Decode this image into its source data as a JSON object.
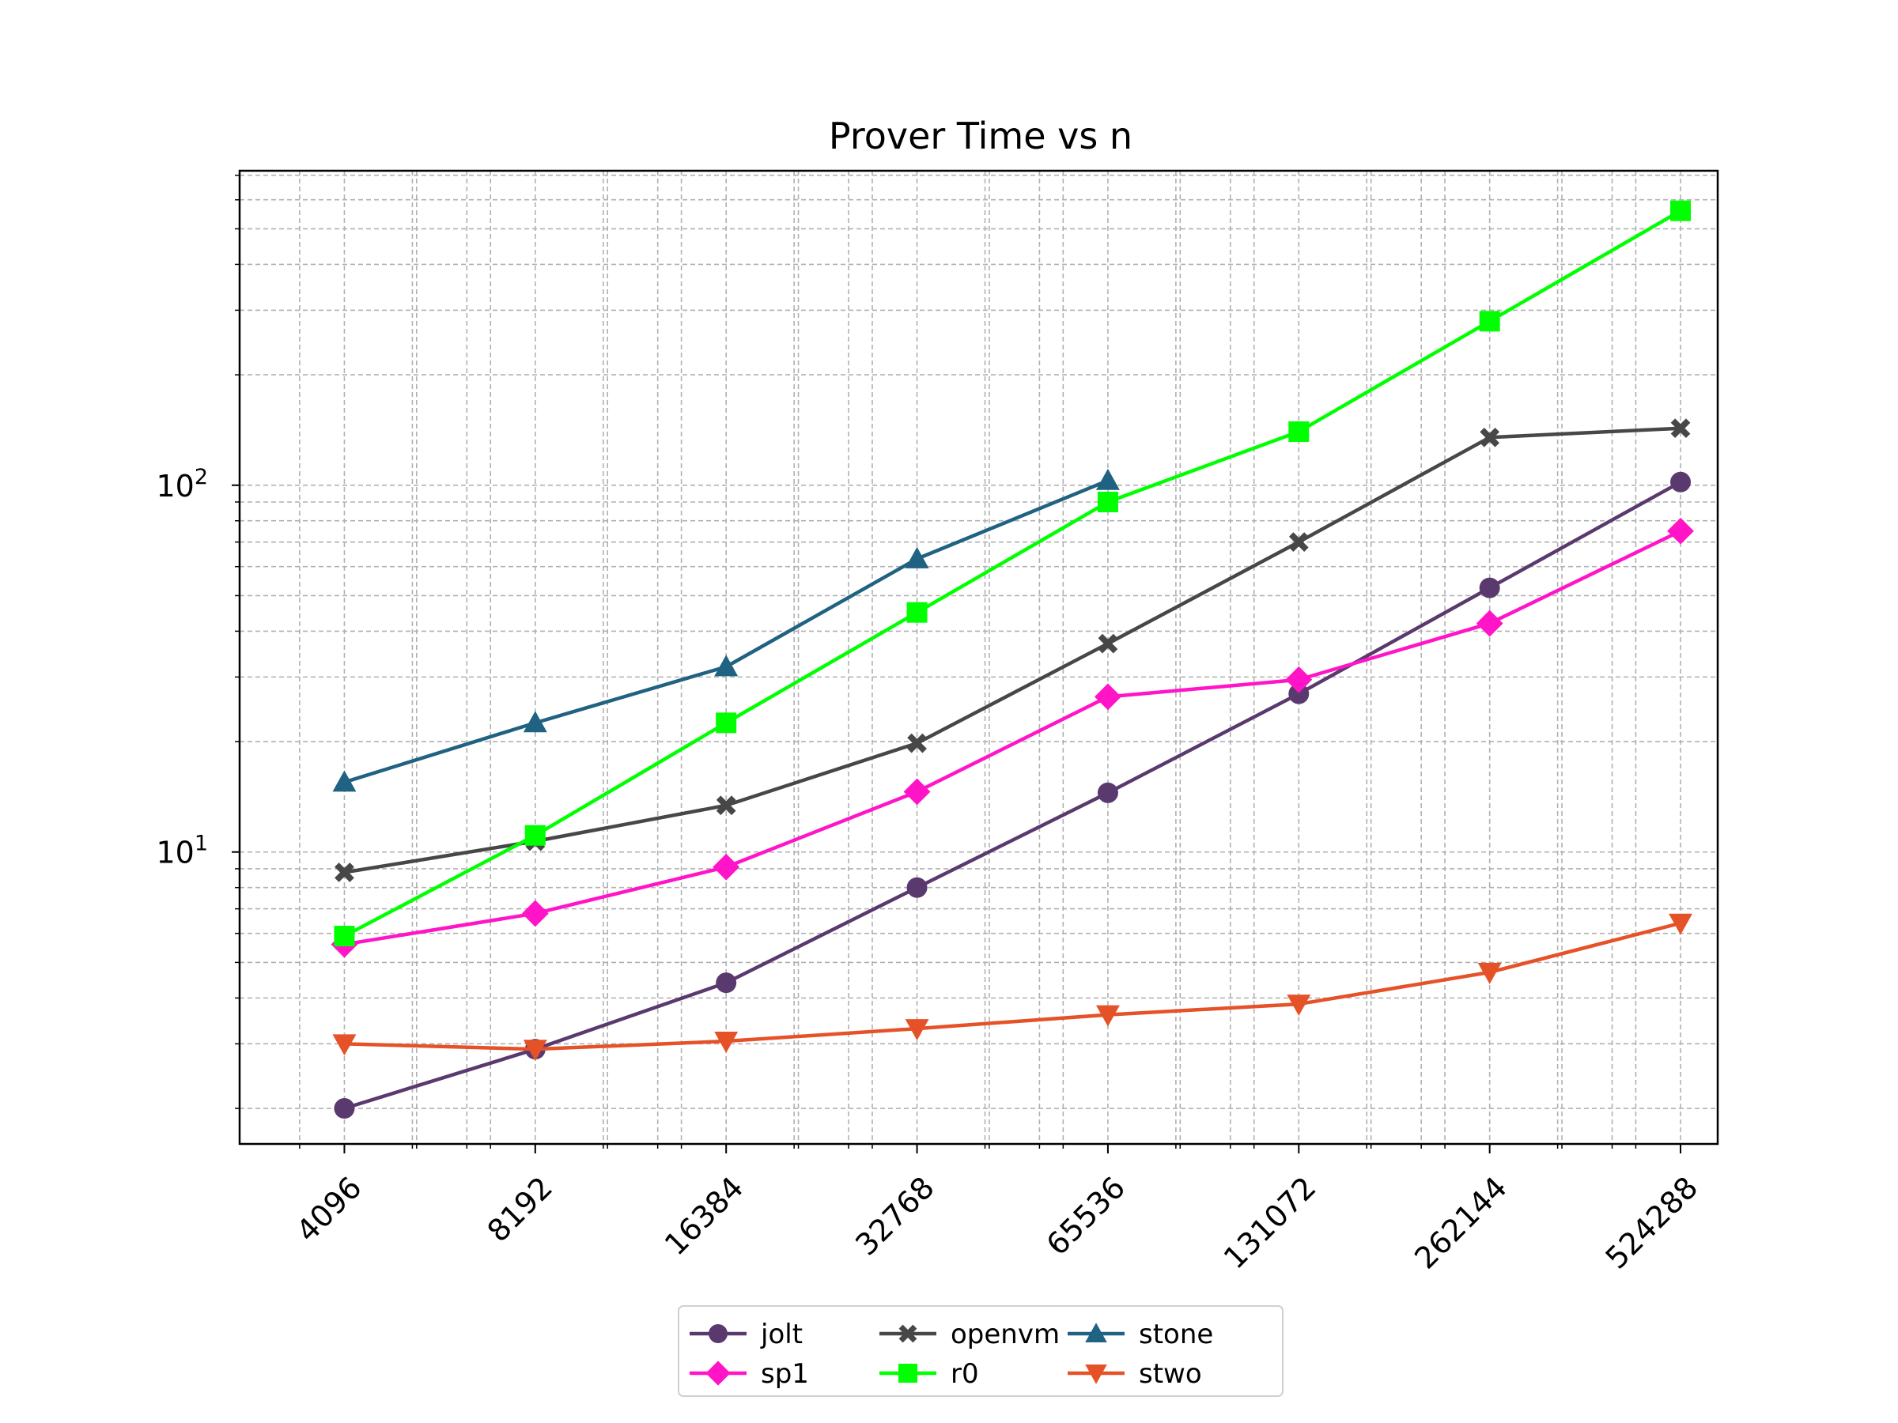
{
  "chart_data": {
    "type": "line",
    "title": "Prover Time vs n",
    "xlabel": "",
    "ylabel": "",
    "x": [
      4096,
      8192,
      16384,
      32768,
      65536,
      131072,
      262144,
      524288
    ],
    "x_tick_labels": [
      "4096",
      "8192",
      "16384",
      "32768",
      "65536",
      "131072",
      "262144",
      "524288"
    ],
    "x_scale": "log2",
    "y_scale": "log10",
    "ylim": [
      1.6,
      720
    ],
    "y_tick_labels": [
      {
        "base": "10",
        "exp": "1",
        "value": 10
      },
      {
        "base": "10",
        "exp": "2",
        "value": 100
      }
    ],
    "grid": true,
    "legend_position": "bottom-center",
    "series": [
      {
        "name": "jolt",
        "color": "#5a3a6e",
        "marker": "circle",
        "values": [
          2.0,
          2.9,
          4.4,
          8.0,
          14.5,
          27.0,
          52.5,
          102.0
        ]
      },
      {
        "name": "sp1",
        "color": "#ff14c8",
        "marker": "diamond",
        "values": [
          5.6,
          6.8,
          9.1,
          14.6,
          26.5,
          29.5,
          42.0,
          75.0
        ]
      },
      {
        "name": "openvm",
        "color": "#474747",
        "marker": "x",
        "values": [
          8.8,
          10.7,
          13.4,
          19.8,
          37.0,
          70.0,
          135.0,
          143.0
        ]
      },
      {
        "name": "r0",
        "color": "#00ff00",
        "marker": "square",
        "values": [
          5.9,
          11.1,
          22.5,
          45.0,
          90.0,
          140.0,
          280.0,
          560.0
        ]
      },
      {
        "name": "stone",
        "color": "#1f6282",
        "marker": "triangle-up",
        "values": [
          15.5,
          22.5,
          32.0,
          63.0,
          103.0,
          null,
          null,
          null
        ]
      },
      {
        "name": "stwo",
        "color": "#e65228",
        "marker": "triangle-down",
        "values": [
          3.0,
          2.9,
          3.05,
          3.3,
          3.6,
          3.85,
          4.7,
          6.4
        ]
      }
    ]
  }
}
